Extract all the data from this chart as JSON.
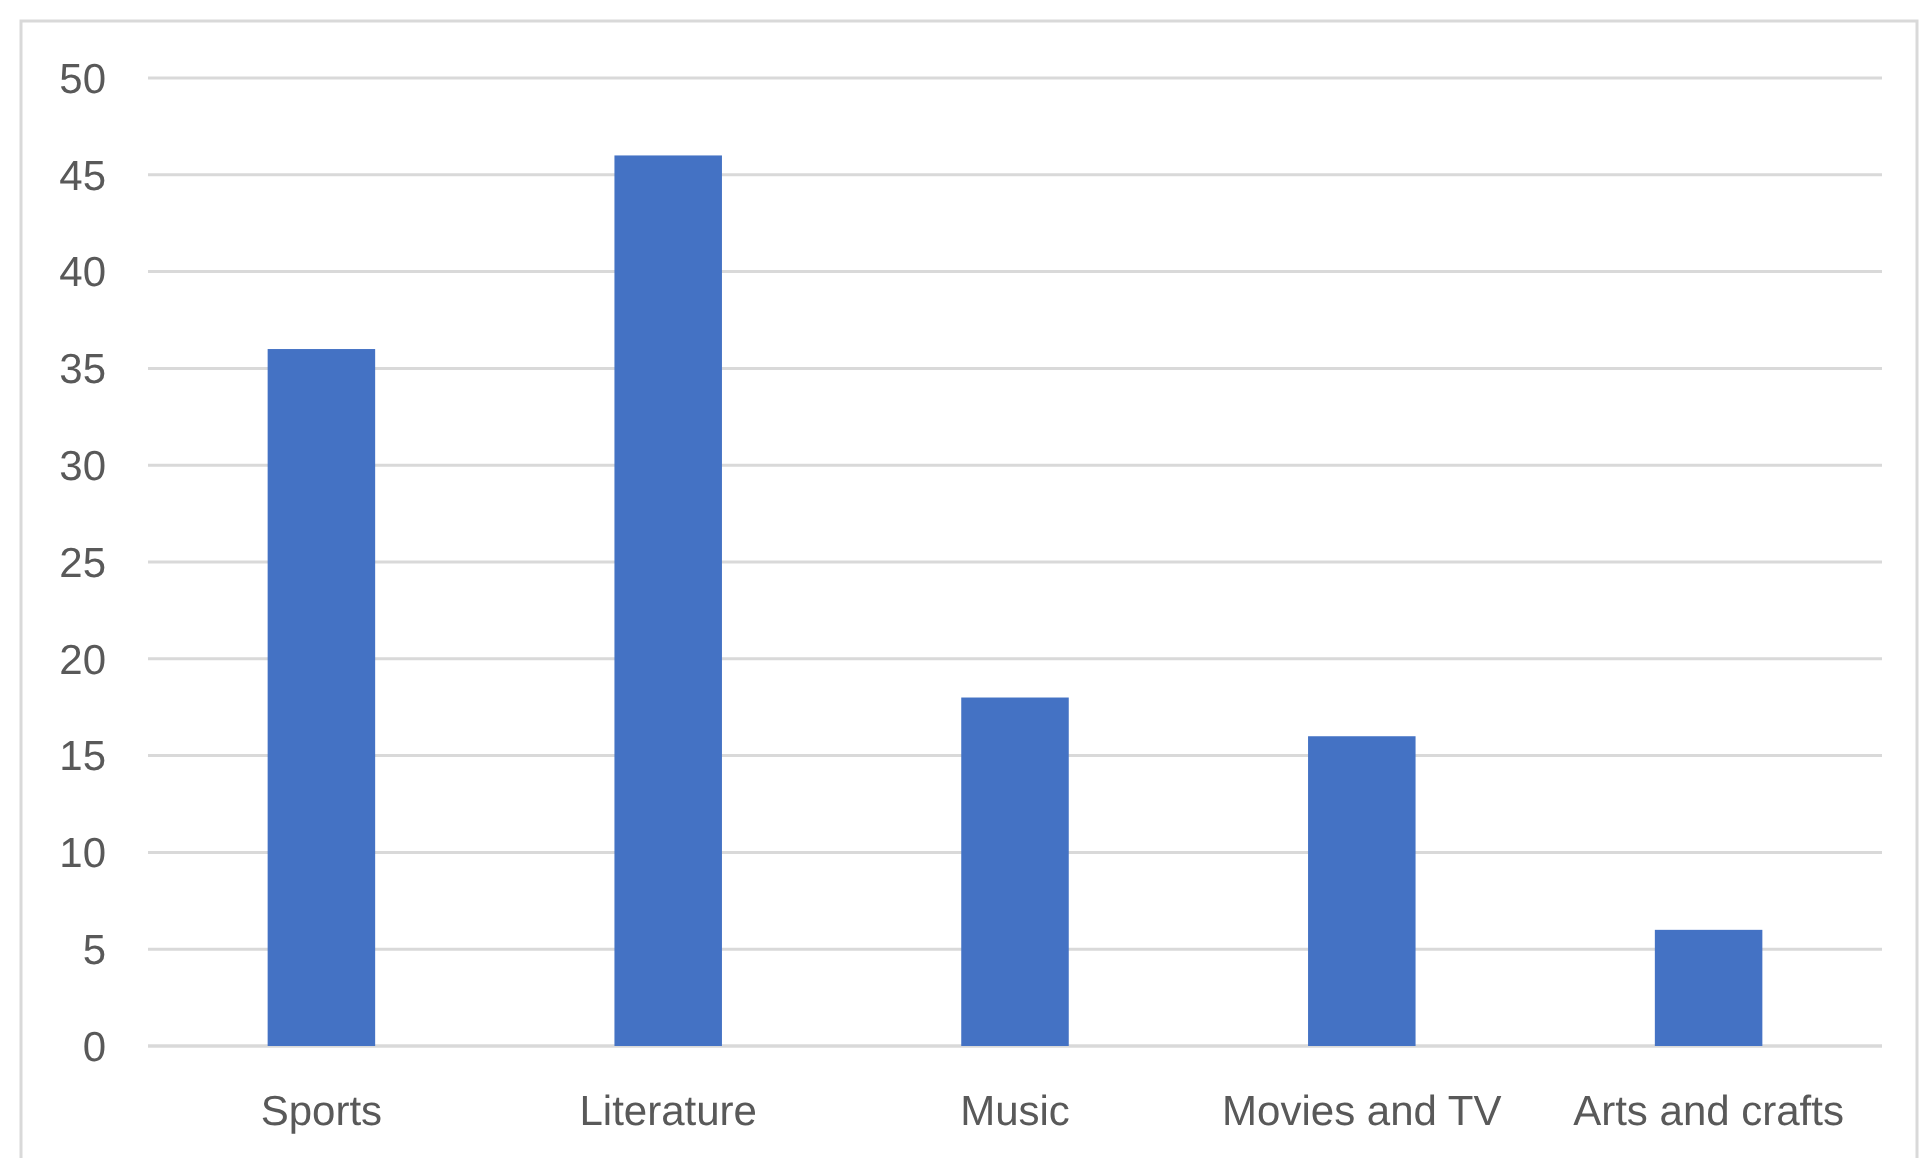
{
  "chart_data": {
    "type": "bar",
    "categories": [
      "Sports",
      "Literature",
      "Music",
      "Movies and TV",
      "Arts and crafts"
    ],
    "values": [
      36,
      46,
      18,
      16,
      6
    ],
    "color": "#4472c4",
    "ylim": [
      0,
      50
    ],
    "yticks": [
      0,
      5,
      10,
      15,
      20,
      25,
      30,
      35,
      40,
      45,
      50
    ],
    "grid": "y"
  }
}
